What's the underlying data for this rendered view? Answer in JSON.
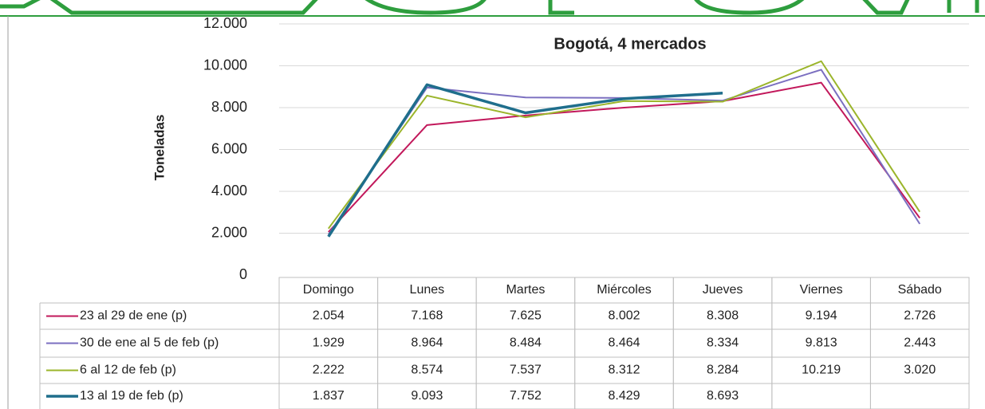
{
  "chart_data": {
    "type": "line",
    "title": "Bogotá, 4 mercados",
    "y_label": "Toneladas",
    "categories": [
      "Domingo",
      "Lunes",
      "Martes",
      "Miércoles",
      "Jueves",
      "Viernes",
      "Sábado"
    ],
    "ylim": [
      0,
      12000
    ],
    "yticks": [
      0,
      {
        "value": 2000,
        "label": "2.000"
      },
      {
        "value": 4000,
        "label": "4.000"
      },
      {
        "value": 6000,
        "label": "6.000"
      },
      {
        "value": 8000,
        "label": "8.000"
      },
      {
        "value": 10000,
        "label": "10.000"
      },
      {
        "value": 12000,
        "label": "12.000"
      }
    ],
    "grid": true,
    "series": [
      {
        "name": "23 al 29 de ene (p)",
        "color": "#c2185b",
        "width": 2,
        "values": [
          2054,
          7168,
          7625,
          8002,
          8308,
          9194,
          2726
        ],
        "value_labels": [
          "2.054",
          "7.168",
          "7.625",
          "8.002",
          "8.308",
          "9.194",
          "2.726"
        ]
      },
      {
        "name": "30 de ene al 5 de feb (p)",
        "color": "#7b6fc0",
        "width": 2,
        "values": [
          1929,
          8964,
          8484,
          8464,
          8334,
          9813,
          2443
        ],
        "value_labels": [
          "1.929",
          "8.964",
          "8.484",
          "8.464",
          "8.334",
          "9.813",
          "2.443"
        ]
      },
      {
        "name": "6 al 12 de feb (p)",
        "color": "#9bb52b",
        "width": 2,
        "values": [
          2222,
          8574,
          7537,
          8312,
          8284,
          10219,
          3020
        ],
        "value_labels": [
          "2.222",
          "8.574",
          "7.537",
          "8.312",
          "8.284",
          "10.219",
          "3.020"
        ]
      },
      {
        "name": "13 al 19 de feb (p)",
        "color": "#1f6e8c",
        "width": 3.5,
        "values": [
          1837,
          9093,
          7752,
          8429,
          8693,
          null,
          null
        ],
        "value_labels": [
          "1.837",
          "9.093",
          "7.752",
          "8.429",
          "8.693",
          null,
          null
        ]
      }
    ]
  }
}
